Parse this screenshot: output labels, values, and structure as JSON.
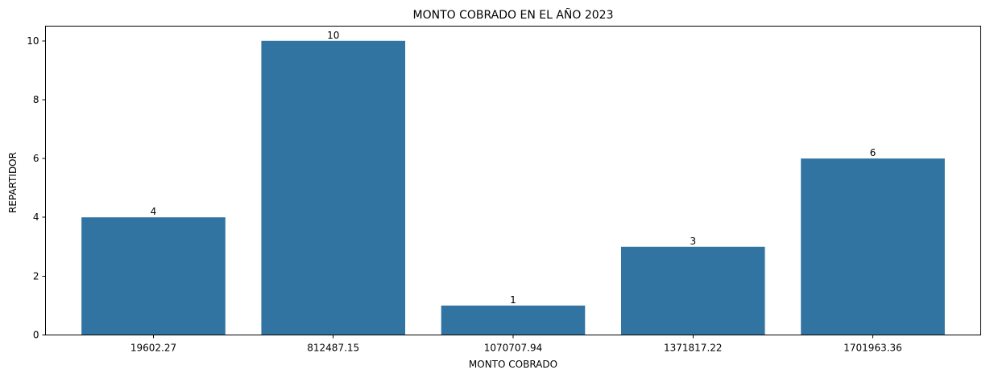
{
  "chart_data": {
    "type": "bar",
    "title": "MONTO COBRADO EN EL AÑO 2023",
    "xlabel": "MONTO COBRADO",
    "ylabel": "REPARTIDOR",
    "categories": [
      "19602.27",
      "812487.15",
      "1070707.94",
      "1371817.22",
      "1701963.36"
    ],
    "values": [
      4,
      10,
      1,
      3,
      6
    ],
    "data_labels": [
      "4",
      "10",
      "1",
      "3",
      "6"
    ],
    "y_ticks": [
      0,
      2,
      4,
      6,
      8,
      10
    ],
    "y_tick_labels": [
      "0",
      "2",
      "4",
      "6",
      "8",
      "10"
    ],
    "ylim": [
      0,
      10.5
    ],
    "grid": false,
    "bar_color": "#3274a1"
  }
}
